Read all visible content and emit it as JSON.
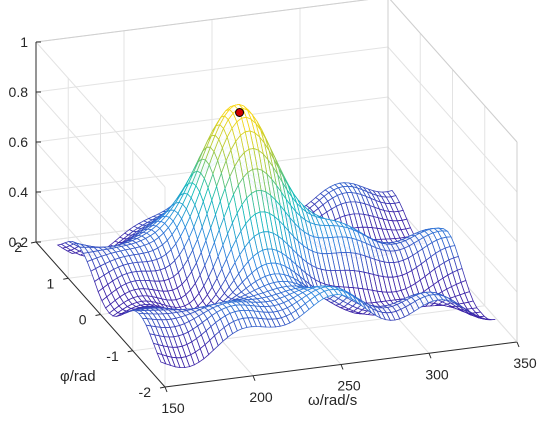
{
  "chart_data": {
    "type": "surface",
    "title": "",
    "xlabel": "ω/rad/s",
    "ylabel": "φ/rad",
    "zlabel": "",
    "xlim": [
      150,
      350
    ],
    "ylim": [
      -2,
      2
    ],
    "zlim": [
      0.2,
      1
    ],
    "x_ticks": [
      "150",
      "200",
      "250",
      "300",
      "350"
    ],
    "y_ticks": [
      "-2",
      "-1",
      "0",
      "1",
      "2"
    ],
    "z_ticks": [
      "0.2",
      "0.4",
      "0.6",
      "0.8",
      "1"
    ],
    "grid": true,
    "colormap": "parula-like",
    "surface_x_range": [
      155,
      345
    ],
    "surface_y_range": [
      -1.6,
      1.6
    ],
    "peak": {
      "x": 240,
      "y": 0.6,
      "z": 0.84,
      "color": "#d00000"
    }
  }
}
